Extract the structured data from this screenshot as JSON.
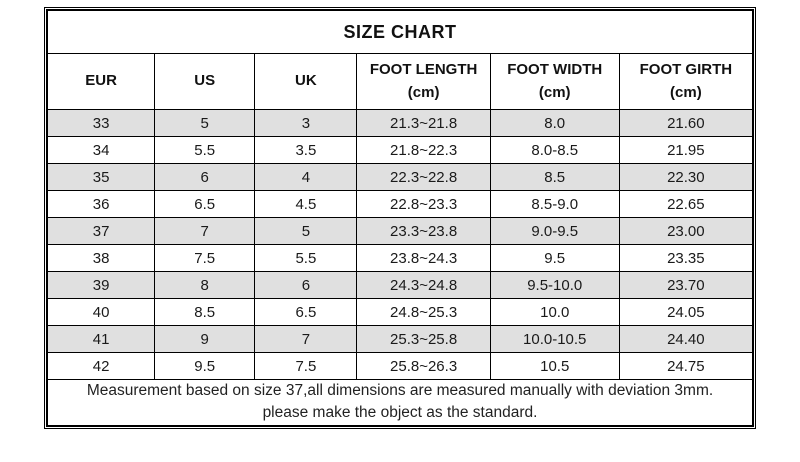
{
  "chart_data": {
    "type": "table",
    "title": "SIZE CHART",
    "columns": [
      {
        "label": "EUR",
        "unit": ""
      },
      {
        "label": "US",
        "unit": ""
      },
      {
        "label": "UK",
        "unit": ""
      },
      {
        "label": "FOOT LENGTH",
        "unit": "(cm)"
      },
      {
        "label": "FOOT WIDTH",
        "unit": "(cm)"
      },
      {
        "label": "FOOT GIRTH",
        "unit": "(cm)"
      }
    ],
    "rows": [
      [
        "33",
        "5",
        "3",
        "21.3~21.8",
        "8.0",
        "21.60"
      ],
      [
        "34",
        "5.5",
        "3.5",
        "21.8~22.3",
        "8.0-8.5",
        "21.95"
      ],
      [
        "35",
        "6",
        "4",
        "22.3~22.8",
        "8.5",
        "22.30"
      ],
      [
        "36",
        "6.5",
        "4.5",
        "22.8~23.3",
        "8.5-9.0",
        "22.65"
      ],
      [
        "37",
        "7",
        "5",
        "23.3~23.8",
        "9.0-9.5",
        "23.00"
      ],
      [
        "38",
        "7.5",
        "5.5",
        "23.8~24.3",
        "9.5",
        "23.35"
      ],
      [
        "39",
        "8",
        "6",
        "24.3~24.8",
        "9.5-10.0",
        "23.70"
      ],
      [
        "40",
        "8.5",
        "6.5",
        "24.8~25.3",
        "10.0",
        "24.05"
      ],
      [
        "41",
        "9",
        "7",
        "25.3~25.8",
        "10.0-10.5",
        "24.40"
      ],
      [
        "42",
        "9.5",
        "7.5",
        "25.8~26.3",
        "10.5",
        "24.75"
      ]
    ],
    "footer_lines": [
      "Measurement based on size 37,all dimensions are measured manually with deviation 3mm.",
      "please make the object as the standard."
    ],
    "layout": {
      "alternating_row_background": "#e0e0e0",
      "border_color": "#000000",
      "outer_border": "double",
      "title_position": "top-center"
    }
  }
}
